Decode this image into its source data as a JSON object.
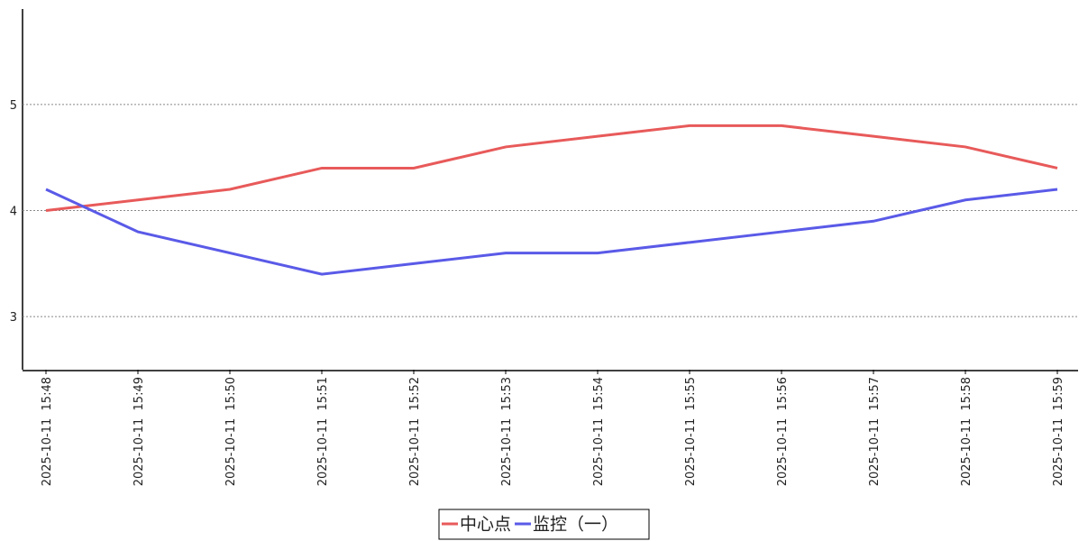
{
  "chart_data": {
    "type": "line",
    "categories": [
      "2025-10-11  15:48",
      "2025-10-11  15:49",
      "2025-10-11  15:50",
      "2025-10-11  15:51",
      "2025-10-11  15:52",
      "2025-10-11  15:53",
      "2025-10-11  15:54",
      "2025-10-11  15:55",
      "2025-10-11  15:56",
      "2025-10-11  15:57",
      "2025-10-11  15:58",
      "2025-10-11  15:59"
    ],
    "series": [
      {
        "name": "中心点",
        "color": "#e85a5a",
        "values": [
          4.0,
          4.1,
          4.2,
          4.4,
          4.4,
          4.6,
          4.7,
          4.8,
          4.8,
          4.7,
          4.6,
          4.4
        ]
      },
      {
        "name": "监控（一）",
        "color": "#5a5ae8",
        "values": [
          4.2,
          3.8,
          3.6,
          3.4,
          3.5,
          3.6,
          3.6,
          3.7,
          3.8,
          3.9,
          4.1,
          4.2
        ]
      }
    ],
    "ylim": [
      2.5,
      5.9
    ],
    "yticks": [
      3,
      4,
      5
    ],
    "grid": true,
    "legend": "bottom"
  }
}
